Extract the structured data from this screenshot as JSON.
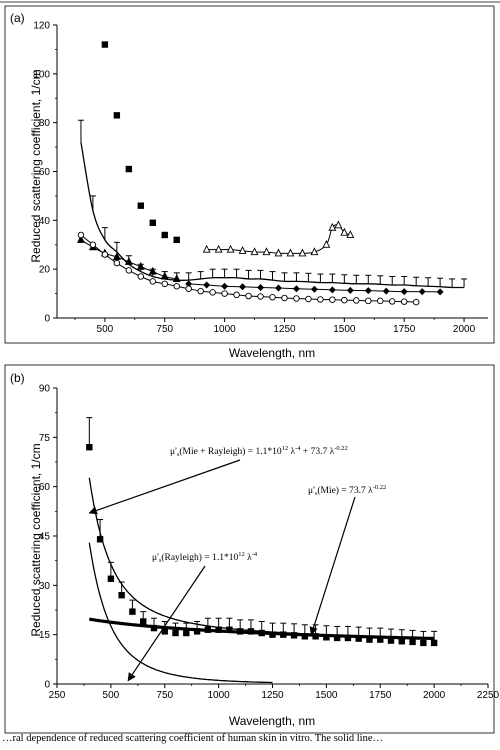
{
  "caption": "…ral dependence of reduced scattering coefficient of human skin in vitro. The solid line…",
  "chart_data": [
    {
      "panel_label": "(a)",
      "type": "scatter",
      "xlabel": "Wavelength, nm",
      "ylabel": "Reduced scattering coefficient, 1/cm",
      "xlim": [
        300,
        2100
      ],
      "ylim": [
        0,
        120
      ],
      "xticks": [
        500,
        750,
        1000,
        1250,
        1500,
        1750,
        2000
      ],
      "yticks": [
        0,
        20,
        40,
        60,
        80,
        100,
        120
      ],
      "grid": false,
      "series": [
        {
          "marker": "square-filled",
          "x": [
            500,
            550,
            600,
            650,
            700,
            750,
            800
          ],
          "y": [
            112,
            83,
            61,
            46,
            39,
            34,
            32
          ]
        },
        {
          "marker": "triangle-filled",
          "x": [
            400,
            450,
            500,
            550,
            600,
            650,
            700,
            750,
            800
          ],
          "y": [
            32,
            29,
            26.5,
            25,
            23,
            21,
            19,
            17,
            16
          ]
        },
        {
          "marker": "triangle-open",
          "x": [
            925,
            975,
            1025,
            1075,
            1125,
            1175,
            1225,
            1275,
            1325,
            1375,
            1425,
            1450,
            1475,
            1500,
            1525
          ],
          "y": [
            28,
            28,
            28,
            27.5,
            27,
            27,
            26.5,
            26.5,
            26.5,
            27,
            30,
            37,
            38,
            35,
            34
          ]
        },
        {
          "marker": "diamond-filled",
          "x": [
            850,
            925,
            1000,
            1075,
            1150,
            1225,
            1300,
            1375,
            1450,
            1525,
            1600,
            1675,
            1750,
            1825,
            1900
          ],
          "y": [
            14,
            13.5,
            13,
            12.8,
            12.5,
            12.3,
            12,
            11.8,
            11.5,
            11.3,
            11.2,
            11,
            10.8,
            10.8,
            10.7
          ]
        },
        {
          "marker": "circle-open",
          "x": [
            400,
            450,
            500,
            550,
            600,
            650,
            700,
            750,
            800,
            850,
            900,
            950,
            1000,
            1050,
            1100,
            1150,
            1200,
            1250,
            1300,
            1350,
            1400,
            1450,
            1500,
            1550,
            1600,
            1650,
            1700,
            1750,
            1800
          ],
          "y": [
            34,
            30,
            26,
            22.5,
            19.5,
            17,
            15,
            14,
            13,
            12,
            11,
            10.5,
            10,
            9.5,
            9,
            8.8,
            8.5,
            8.2,
            8,
            7.8,
            7.6,
            7.5,
            7.3,
            7.2,
            7,
            7,
            6.8,
            6.7,
            6.5
          ]
        },
        {
          "marker": "line-errorbars",
          "x": [
            400,
            450,
            500,
            550,
            600,
            650,
            700,
            750,
            800,
            850,
            900,
            950,
            1000,
            1050,
            1100,
            1150,
            1200,
            1250,
            1300,
            1350,
            1400,
            1450,
            1500,
            1550,
            1600,
            1650,
            1700,
            1750,
            1800,
            1850,
            1900,
            1950,
            2000
          ],
          "y": [
            72,
            44,
            32,
            27,
            22,
            19,
            17,
            16,
            15.5,
            15.5,
            16,
            16.5,
            16.5,
            16.5,
            16,
            16,
            15.5,
            15,
            15,
            14.8,
            14.5,
            14.5,
            14.2,
            14,
            14,
            13.8,
            13.5,
            13.5,
            13.2,
            13,
            12.8,
            12.5,
            12.5
          ],
          "err": [
            9,
            6,
            5,
            4,
            3.5,
            3,
            3,
            3,
            3,
            3,
            3,
            3.5,
            3.5,
            3.5,
            3.5,
            3.5,
            3.5,
            3.5,
            3.5,
            3.5,
            3.5,
            3.5,
            3.5,
            3.5,
            3.5,
            3.5,
            3.5,
            3.5,
            3.5,
            3.5,
            3.5,
            3.5,
            3.5
          ]
        }
      ]
    },
    {
      "panel_label": "(b)",
      "type": "scatter",
      "xlabel": "Wavelength, nm",
      "ylabel": "Reduced scattering coefficient, 1/cm",
      "xlim": [
        250,
        2250
      ],
      "ylim": [
        0,
        90
      ],
      "xticks": [
        250,
        500,
        750,
        1000,
        1250,
        1500,
        1750,
        2000,
        2250
      ],
      "yticks": [
        0,
        15,
        30,
        45,
        60,
        75,
        90
      ],
      "grid": false,
      "series": [
        {
          "marker": "square-filled-errorbars",
          "x": [
            400,
            450,
            500,
            550,
            600,
            650,
            700,
            750,
            800,
            850,
            900,
            950,
            1000,
            1050,
            1100,
            1150,
            1200,
            1250,
            1300,
            1350,
            1400,
            1450,
            1500,
            1550,
            1600,
            1650,
            1700,
            1750,
            1800,
            1850,
            1900,
            1950,
            2000
          ],
          "y": [
            72,
            44,
            32,
            27,
            22,
            19,
            17,
            16,
            15.5,
            15.5,
            16,
            16.5,
            16.5,
            16.5,
            16,
            16,
            15.5,
            15,
            15,
            14.8,
            14.5,
            14.5,
            14.2,
            14,
            14,
            13.8,
            13.5,
            13.5,
            13.2,
            13,
            12.8,
            12.5,
            12.5
          ],
          "err": [
            9,
            6,
            5,
            4,
            3.5,
            3,
            3,
            3,
            3,
            3,
            3,
            3.5,
            3.5,
            3.5,
            3.5,
            3.5,
            3.5,
            3.5,
            3.5,
            3.5,
            3.5,
            3.5,
            3.5,
            3.5,
            3.5,
            3.5,
            3.5,
            3.5,
            3.5,
            3.5,
            3.5,
            3.5,
            3.5
          ]
        }
      ],
      "fits": [
        {
          "model": "rayleigh",
          "a": 1100000000000.0,
          "power": -4,
          "x_range": [
            400,
            1250
          ]
        },
        {
          "model": "mie",
          "b": 73.7,
          "power": -0.22,
          "x_range": [
            400,
            2000
          ]
        },
        {
          "model": "mie+rayleigh",
          "x_range": [
            400,
            2000
          ]
        }
      ],
      "annotations": [
        {
          "id": "mie-rayleigh",
          "prefix": "(Mie + Rayleigh) = 1.1*10",
          "exp1": "12",
          "mid": " λ",
          "exp2": "-4",
          "tail": " + 73.7 λ",
          "exp3": "-0.22",
          "points_to": [
            400,
            52
          ]
        },
        {
          "id": "mie",
          "prefix": "(Mie) = 73.7 λ",
          "exp1": "-0.22",
          "points_to": [
            1430,
            15
          ]
        },
        {
          "id": "rayleigh",
          "prefix": "(Rayleigh) = 1.1*10",
          "exp1": "12",
          "mid": " λ",
          "exp2": "-4",
          "points_to": [
            580,
            1
          ]
        }
      ]
    }
  ]
}
